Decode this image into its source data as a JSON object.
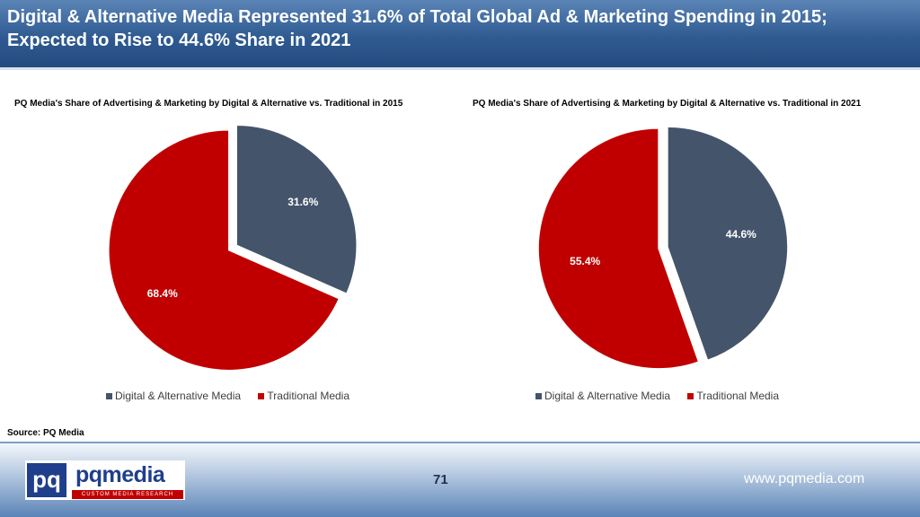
{
  "header": {
    "title": "Digital & Alternative Media Represented 31.6% of Total Global Ad & Marketing Spending in 2015; Expected to Rise to 44.6% Share in 2021"
  },
  "colors": {
    "digital": "#44546a",
    "traditional": "#c00000"
  },
  "chart_data": [
    {
      "type": "pie",
      "title": "PQ Media's Share of Advertising & Marketing by Digital & Alternative vs. Traditional in 2015",
      "categories": [
        "Digital & Alternative Media",
        "Traditional Media"
      ],
      "values": [
        31.6,
        68.4
      ],
      "labels": [
        "31.6%",
        "68.4%"
      ],
      "legend_placement": "bottom"
    },
    {
      "type": "pie",
      "title": "PQ Media's Share of Advertising & Marketing by Digital & Alternative vs. Traditional in 2021",
      "categories": [
        "Digital & Alternative Media",
        "Traditional Media"
      ],
      "values": [
        44.6,
        55.4
      ],
      "labels": [
        "44.6%",
        "55.4%"
      ],
      "legend_placement": "bottom"
    }
  ],
  "source": "Source: PQ Media",
  "footer": {
    "logo_mark": "pq",
    "logo_name": "pqmedia",
    "logo_tagline": "CUSTOM MEDIA RESEARCH",
    "page_number": "71",
    "website": "www.pqmedia.com"
  }
}
